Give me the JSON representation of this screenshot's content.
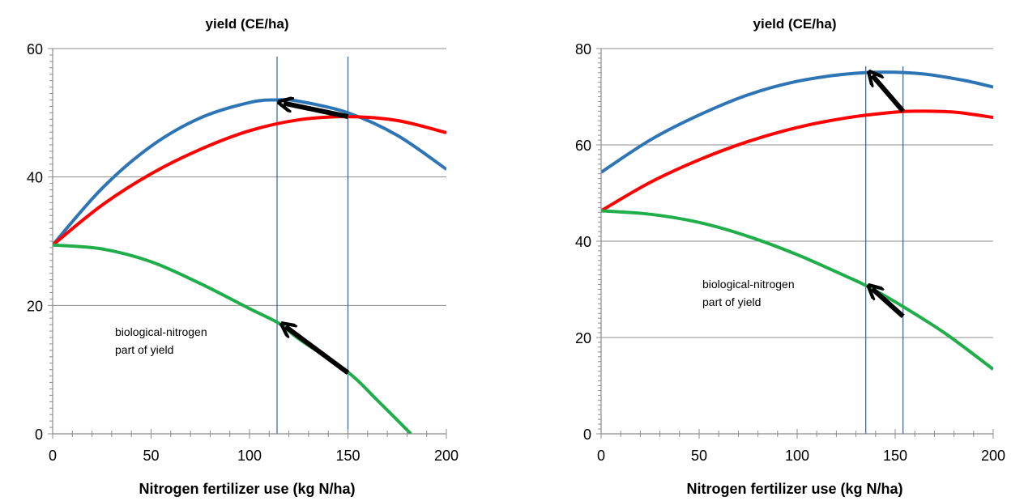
{
  "chart_data": [
    {
      "type": "line",
      "title": "yield  (CE/ha)",
      "xlabel": "Nitrogen fertilizer use (kg N/ha)",
      "ylabel": "",
      "xlim": [
        0,
        200
      ],
      "ylim": [
        0,
        60
      ],
      "xticks": [
        0,
        50,
        100,
        150,
        200
      ],
      "yticks": [
        0,
        20,
        40,
        60
      ],
      "grid": "horizontal",
      "annotation": [
        "biological-nitrogen",
        "part of yield"
      ],
      "colors": {
        "blue": "#2e75b6",
        "red": "#ff0000",
        "green": "#1fae4a",
        "vline": "#2e5fa3",
        "arrow": "#000000"
      },
      "series": [
        {
          "color": "blue",
          "x": [
            0,
            25,
            50,
            75,
            100,
            114,
            125,
            150,
            175,
            200
          ],
          "y": [
            29.4,
            38.2,
            44.8,
            49.2,
            51.6,
            52.0,
            51.8,
            50.0,
            46.5,
            41.2
          ]
        },
        {
          "color": "red",
          "x": [
            0,
            25,
            50,
            75,
            100,
            125,
            150,
            175,
            200
          ],
          "y": [
            29.4,
            35.6,
            40.5,
            44.3,
            47.2,
            48.9,
            49.4,
            48.8,
            46.9
          ]
        },
        {
          "color": "green",
          "x": [
            0,
            25,
            50,
            75,
            100,
            115,
            125,
            150,
            165,
            182
          ],
          "y": [
            29.4,
            28.8,
            26.8,
            23.4,
            19.5,
            17.2,
            14.8,
            9.6,
            5.2,
            0
          ]
        }
      ],
      "vlines": [
        114,
        150
      ],
      "arrows": [
        {
          "from": [
            150,
            49.4
          ],
          "to": [
            114,
            52.0
          ]
        },
        {
          "from": [
            150,
            9.5
          ],
          "to": [
            115,
            17.2
          ]
        }
      ]
    },
    {
      "type": "line",
      "title": "yield  (CE/ha)",
      "xlabel": "Nitrogen fertilizer use (kg N/ha)",
      "ylabel": "",
      "xlim": [
        0,
        200
      ],
      "ylim": [
        0,
        80
      ],
      "xticks": [
        0,
        50,
        100,
        150,
        200
      ],
      "yticks": [
        0,
        20,
        40,
        60,
        80
      ],
      "grid": "horizontal",
      "annotation": [
        "biological-nitrogen",
        "part of yield"
      ],
      "colors": {
        "blue": "#2e75b6",
        "red": "#ff0000",
        "green": "#1fae4a",
        "vline": "#2e5fa3",
        "arrow": "#000000"
      },
      "series": [
        {
          "color": "blue",
          "x": [
            0,
            25,
            50,
            75,
            100,
            125,
            145,
            165,
            185,
            200
          ],
          "y": [
            54.3,
            61.0,
            66.2,
            70.4,
            73.2,
            74.7,
            75.1,
            74.7,
            73.4,
            72.0
          ]
        },
        {
          "color": "red",
          "x": [
            0,
            25,
            50,
            75,
            100,
            125,
            150,
            162,
            180,
            200
          ],
          "y": [
            46.3,
            52.2,
            56.9,
            60.7,
            63.6,
            65.6,
            66.8,
            67.0,
            66.8,
            65.7
          ]
        },
        {
          "color": "green",
          "x": [
            0,
            25,
            50,
            75,
            100,
            125,
            135,
            150,
            175,
            200
          ],
          "y": [
            46.3,
            45.6,
            43.9,
            41.0,
            37.2,
            32.7,
            30.8,
            27.4,
            21.0,
            13.4
          ]
        }
      ],
      "vlines": [
        135,
        154
      ],
      "arrows": [
        {
          "from": [
            154,
            67.0
          ],
          "to": [
            135,
            75.1
          ]
        },
        {
          "from": [
            154,
            24.4
          ],
          "to": [
            135,
            30.8
          ]
        }
      ]
    }
  ]
}
